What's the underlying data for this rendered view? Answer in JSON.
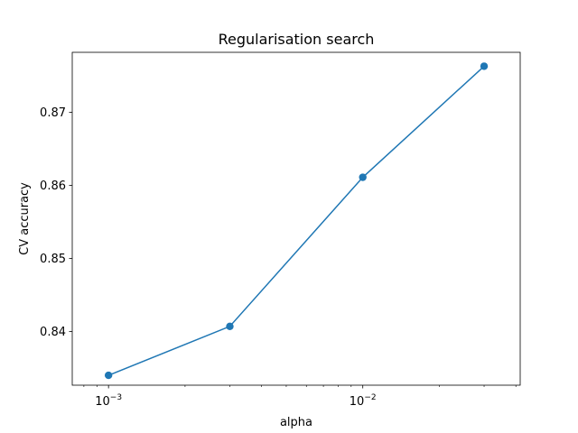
{
  "chart_data": {
    "type": "line",
    "title": "Regularisation search",
    "xlabel": "alpha",
    "ylabel": "CV accuracy",
    "x_scale": "log",
    "xlim": [
      0.00072,
      0.0416
    ],
    "ylim": [
      0.83265,
      0.8782
    ],
    "x": [
      0.001,
      0.003,
      0.01,
      0.03
    ],
    "series": [
      {
        "values": [
          0.834,
          0.8407,
          0.8611,
          0.8763
        ],
        "color": "#1f77b4",
        "marker": "circle"
      }
    ],
    "x_ticks": [
      {
        "value": 0.001,
        "base": "10",
        "exponent": "−3"
      },
      {
        "value": 0.01,
        "base": "10",
        "exponent": "−2"
      }
    ],
    "y_ticks": [
      {
        "value": 0.84,
        "label": "0.84"
      },
      {
        "value": 0.85,
        "label": "0.85"
      },
      {
        "value": 0.86,
        "label": "0.86"
      },
      {
        "value": 0.87,
        "label": "0.87"
      }
    ],
    "grid": false,
    "legend": "none"
  }
}
